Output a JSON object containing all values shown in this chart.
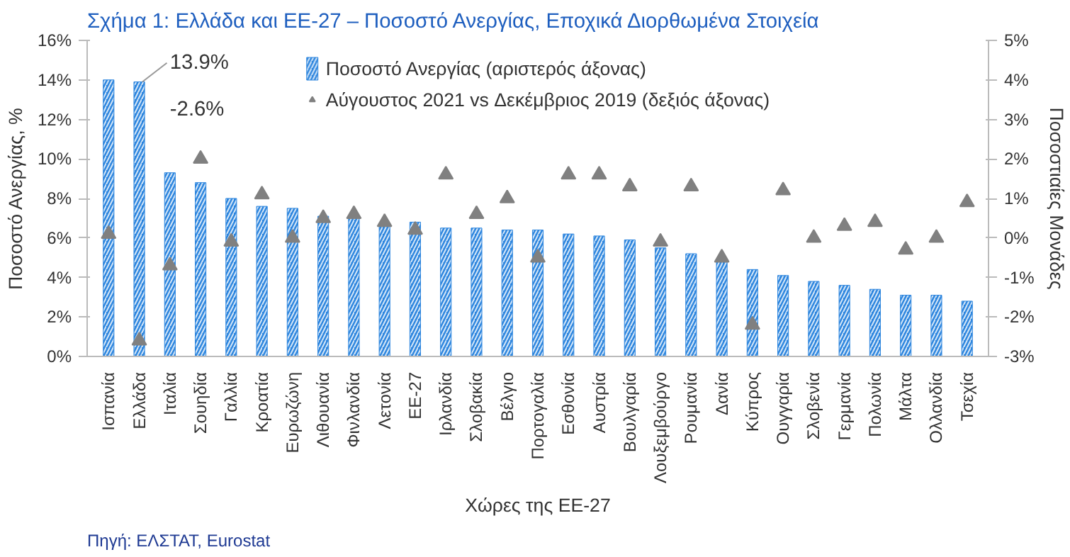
{
  "chart_data": {
    "type": "bar",
    "title": "Σχήμα 1: Ελλάδα και ΕΕ-27 – Ποσοστό Ανεργίας, Εποχικά Διορθωμένα Στοιχεία",
    "xlabel": "Χώρες της ΕΕ-27",
    "ylabel": "Ποσοστό Ανεργίας, %",
    "y2label": "Ποσοστιαίες Μονάδες",
    "categories": [
      "Ισπανία",
      "Ελλάδα",
      "Ιταλία",
      "Σουηδία",
      "Γαλλία",
      "Κροατία",
      "Ευρωζώνη",
      "Λιθουανία",
      "Φινλανδία",
      "Λετονία",
      "ΕΕ-27",
      "Ιρλανδία",
      "Σλοβακία",
      "Βέλγιο",
      "Πορτογαλία",
      "Εσθονία",
      "Αυστρία",
      "Βουλγαρία",
      "Λουξεμβούργο",
      "Ρουμανία",
      "Δανία",
      "Κύπρος",
      "Ουγγαρία",
      "Σλοβενία",
      "Γερμανία",
      "Πολωνία",
      "Μάλτα",
      "Ολλανδία",
      "Τσεχία"
    ],
    "series": [
      {
        "name": "Ποσοστό Ανεργίας (αριστερός άξονας)",
        "color": "#2e86de",
        "values": [
          14.0,
          13.9,
          9.3,
          8.8,
          8.0,
          7.6,
          7.5,
          7.1,
          7.0,
          6.7,
          6.8,
          6.5,
          6.5,
          6.4,
          6.4,
          6.2,
          6.1,
          5.9,
          5.5,
          5.2,
          4.8,
          4.4,
          4.1,
          3.8,
          3.6,
          3.4,
          3.1,
          3.1,
          2.8
        ]
      },
      {
        "name": "Αύγουστος 2021 vs Δεκέμβριος 2019 (δεξιός άξονας)",
        "type": "scatter",
        "axis": "y2",
        "marker": "triangle",
        "color": "#808080",
        "values": [
          0.1,
          -2.6,
          -0.7,
          2.0,
          -0.1,
          1.1,
          0.0,
          0.5,
          0.6,
          0.4,
          0.2,
          1.6,
          0.6,
          1.0,
          -0.5,
          1.6,
          1.6,
          1.3,
          -0.1,
          1.3,
          -0.5,
          -2.2,
          1.2,
          0.0,
          0.3,
          0.4,
          -0.3,
          0.0,
          0.9
        ]
      }
    ],
    "ylim": [
      0,
      16
    ],
    "yticks": [
      {
        "value": 0,
        "label": "0%"
      },
      {
        "value": 2,
        "label": "2%"
      },
      {
        "value": 4,
        "label": "4%"
      },
      {
        "value": 6,
        "label": "6%"
      },
      {
        "value": 8,
        "label": "8%"
      },
      {
        "value": 10,
        "label": "10%"
      },
      {
        "value": 12,
        "label": "12%"
      },
      {
        "value": 14,
        "label": "14%"
      },
      {
        "value": 16,
        "label": "16%"
      }
    ],
    "y2lim": [
      -3,
      5
    ],
    "y2ticks": [
      {
        "value": -3,
        "label": "-3%"
      },
      {
        "value": -2,
        "label": "-2%"
      },
      {
        "value": -1,
        "label": "-1%"
      },
      {
        "value": 0,
        "label": "0%"
      },
      {
        "value": 1,
        "label": "1%"
      },
      {
        "value": 2,
        "label": "2%"
      },
      {
        "value": 3,
        "label": "3%"
      },
      {
        "value": 4,
        "label": "4%"
      },
      {
        "value": 5,
        "label": "5%"
      }
    ],
    "grid": false,
    "legend": "top",
    "annotations": [
      {
        "text": "13.9%",
        "x": "Ελλάδα",
        "y": 13.9
      },
      "-2.6%",
      "Πηγή: ΕΛΣΤΑΤ, Eurostat"
    ]
  }
}
